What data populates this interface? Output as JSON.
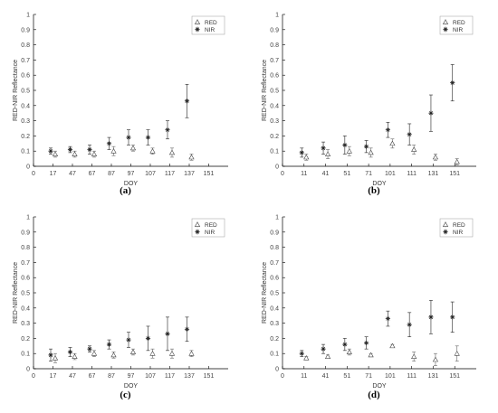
{
  "chart_data": [
    {
      "type": "scatter",
      "panel_label": "(a)",
      "xlabel": "DOY",
      "ylabel": "RED-NIR Reflectance",
      "xlim": [
        0,
        161
      ],
      "ylim": [
        0,
        1
      ],
      "xticks": [
        0,
        17,
        47,
        67,
        87,
        97,
        107,
        117,
        137,
        151
      ],
      "xtick_pos": [
        0,
        1,
        2,
        3,
        4,
        5,
        6,
        7,
        8,
        9
      ],
      "yticks": [
        "0",
        "0.1",
        "0.2",
        "0.3",
        "0.4",
        "0.5",
        "0.6",
        "0.7",
        "0.8",
        "0.9",
        "1"
      ],
      "legend_position": "top-right",
      "series": [
        {
          "name": "RED",
          "marker": "triangle",
          "x": [
            17,
            47,
            67,
            87,
            97,
            107,
            117,
            137
          ],
          "y": [
            0.08,
            0.08,
            0.08,
            0.1,
            0.12,
            0.1,
            0.09,
            0.06
          ],
          "err": [
            0.02,
            0.02,
            0.02,
            0.03,
            0.02,
            0.02,
            0.03,
            0.02
          ]
        },
        {
          "name": "NIR",
          "marker": "star",
          "x": [
            17,
            47,
            67,
            87,
            97,
            107,
            117,
            137
          ],
          "y": [
            0.1,
            0.11,
            0.11,
            0.15,
            0.19,
            0.19,
            0.24,
            0.43
          ],
          "err": [
            0.02,
            0.02,
            0.03,
            0.04,
            0.05,
            0.05,
            0.06,
            0.11
          ]
        }
      ]
    },
    {
      "type": "scatter",
      "panel_label": "(b)",
      "xlabel": "DOY",
      "ylabel": "RED-NIR Reflectance",
      "xlim": [
        0,
        161
      ],
      "ylim": [
        0,
        1
      ],
      "xticks": [
        0,
        11,
        41,
        51,
        71,
        101,
        111,
        131,
        151
      ],
      "xtick_pos": [
        0,
        1,
        2,
        3,
        4,
        5,
        6,
        7,
        8
      ],
      "yticks": [
        "0",
        "0.1",
        "0.2",
        "0.3",
        "0.4",
        "0.5",
        "0.6",
        "0.7",
        "0.8",
        "0.9",
        "1"
      ],
      "legend_position": "top-right",
      "series": [
        {
          "name": "RED",
          "marker": "triangle",
          "x": [
            11,
            41,
            51,
            71,
            101,
            111,
            131,
            151
          ],
          "y": [
            0.06,
            0.08,
            0.1,
            0.09,
            0.15,
            0.11,
            0.06,
            0.03
          ],
          "err": [
            0.02,
            0.03,
            0.03,
            0.03,
            0.03,
            0.03,
            0.02,
            0.02
          ]
        },
        {
          "name": "NIR",
          "marker": "star",
          "x": [
            11,
            41,
            51,
            71,
            101,
            111,
            131,
            151
          ],
          "y": [
            0.09,
            0.12,
            0.14,
            0.13,
            0.24,
            0.21,
            0.35,
            0.55
          ],
          "err": [
            0.03,
            0.04,
            0.06,
            0.04,
            0.05,
            0.07,
            0.12,
            0.12
          ]
        }
      ]
    },
    {
      "type": "scatter",
      "panel_label": "(c)",
      "xlabel": "DOY",
      "ylabel": "RED-NIR Reflectance",
      "xlim": [
        0,
        161
      ],
      "ylim": [
        0,
        1
      ],
      "xticks": [
        0,
        17,
        47,
        67,
        87,
        97,
        107,
        117,
        137,
        151
      ],
      "xtick_pos": [
        0,
        1,
        2,
        3,
        4,
        5,
        6,
        7,
        8,
        9
      ],
      "yticks": [
        "0",
        "0.1",
        "0.2",
        "0.3",
        "0.4",
        "0.5",
        "0.6",
        "0.7",
        "0.8",
        "0.9",
        "1"
      ],
      "legend_position": "top-right",
      "series": [
        {
          "name": "RED",
          "marker": "triangle",
          "x": [
            17,
            47,
            67,
            87,
            97,
            107,
            117,
            137
          ],
          "y": [
            0.07,
            0.08,
            0.1,
            0.09,
            0.11,
            0.1,
            0.1,
            0.1
          ],
          "err": [
            0.03,
            0.02,
            0.02,
            0.02,
            0.02,
            0.03,
            0.03,
            0.02
          ]
        },
        {
          "name": "NIR",
          "marker": "star",
          "x": [
            17,
            47,
            67,
            87,
            97,
            107,
            117,
            137
          ],
          "y": [
            0.09,
            0.11,
            0.13,
            0.16,
            0.19,
            0.2,
            0.23,
            0.26
          ],
          "err": [
            0.04,
            0.03,
            0.02,
            0.03,
            0.05,
            0.08,
            0.11,
            0.08
          ]
        }
      ]
    },
    {
      "type": "scatter",
      "panel_label": "(d)",
      "xlabel": "DOY",
      "ylabel": "RED-NIR Reflectance",
      "xlim": [
        0,
        161
      ],
      "ylim": [
        0,
        1
      ],
      "xticks": [
        0,
        11,
        41,
        51,
        71,
        101,
        111,
        131,
        151
      ],
      "xtick_pos": [
        0,
        1,
        2,
        3,
        4,
        5,
        6,
        7,
        8
      ],
      "yticks": [
        "0",
        "0.1",
        "0.2",
        "0.3",
        "0.4",
        "0.5",
        "0.6",
        "0.7",
        "0.8",
        "0.9",
        "1"
      ],
      "legend_position": "top-right",
      "series": [
        {
          "name": "RED",
          "marker": "triangle",
          "x": [
            11,
            41,
            51,
            71,
            101,
            111,
            131,
            151
          ],
          "y": [
            0.07,
            0.08,
            0.11,
            0.09,
            0.15,
            0.08,
            0.06,
            0.1
          ],
          "err": [
            0.01,
            0.01,
            0.02,
            0.01,
            0.01,
            0.03,
            0.04,
            0.05
          ]
        },
        {
          "name": "NIR",
          "marker": "star",
          "x": [
            11,
            41,
            51,
            71,
            101,
            111,
            131,
            151
          ],
          "y": [
            0.1,
            0.13,
            0.16,
            0.17,
            0.33,
            0.29,
            0.34,
            0.34
          ],
          "err": [
            0.02,
            0.03,
            0.04,
            0.04,
            0.05,
            0.08,
            0.11,
            0.1
          ]
        }
      ]
    }
  ]
}
